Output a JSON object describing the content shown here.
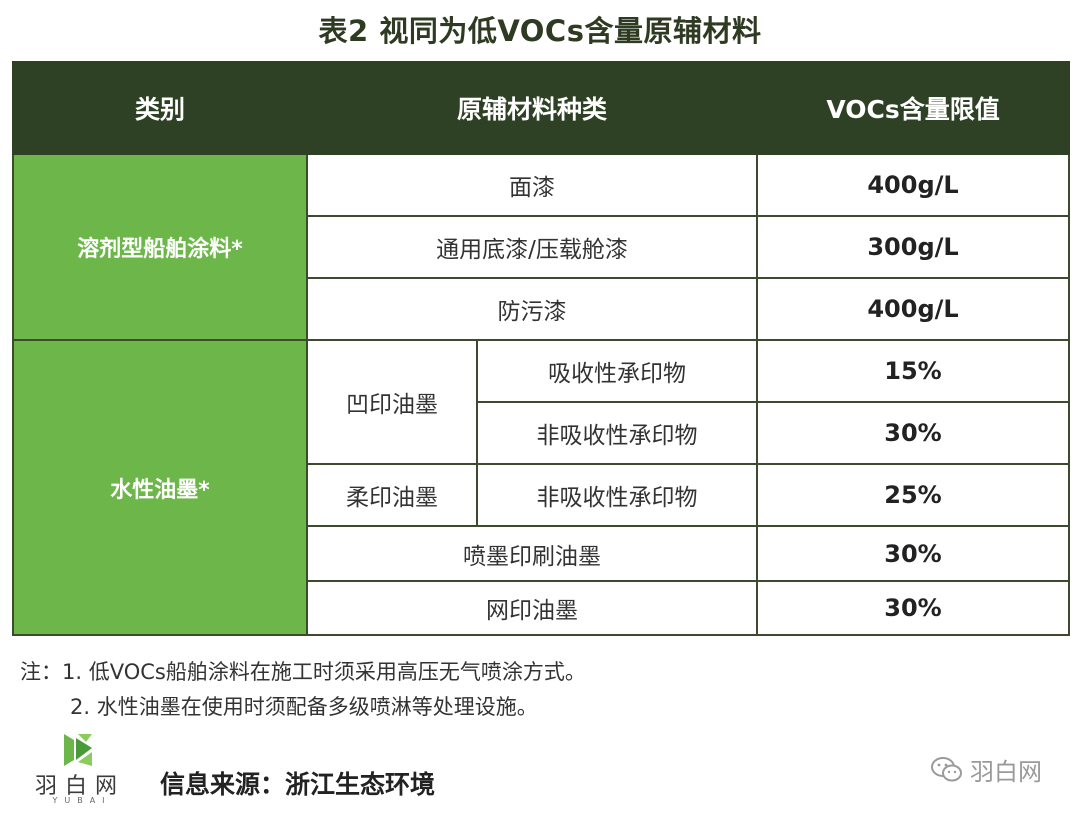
{
  "title": "表2 视同为低VOCs含量原辅材料",
  "table": {
    "headers": [
      "类别",
      "原辅材料种类",
      "VOCs含量限值"
    ],
    "solvent": {
      "category": "溶剂型船舶涂料*",
      "rows": [
        {
          "type": "面漆",
          "limit": "400g/L"
        },
        {
          "type": "通用底漆/压载舱漆",
          "limit": "300g/L"
        },
        {
          "type": "防污漆",
          "limit": "400g/L"
        }
      ]
    },
    "water": {
      "category": "水性油墨*",
      "gravure": "凹印油墨",
      "gravure_rows": [
        {
          "type": "吸收性承印物",
          "limit": "15%"
        },
        {
          "type": "非吸收性承印物",
          "limit": "30%"
        }
      ],
      "flexo": "柔印油墨",
      "flexo_row": {
        "type": "非吸收性承印物",
        "limit": "25%"
      },
      "other_rows": [
        {
          "type": "喷墨印刷油墨",
          "limit": "30%"
        },
        {
          "type": "网印油墨",
          "limit": "30%"
        }
      ]
    }
  },
  "notes": {
    "line1": "注：1. 低VOCs船舶涂料在施工时须采用高压无气喷涂方式。",
    "line2": "2. 水性油墨在使用时须配备多级喷淋等处理设施。"
  },
  "logo": {
    "text": "羽白网",
    "sub": "YUBAI",
    "icon": "yubai-logo-icon"
  },
  "source": "信息来源：浙江生态环境",
  "watermark": {
    "icon": "wechat-icon",
    "text": "羽白网"
  },
  "colors": {
    "header_bg": "#2f4124",
    "category_bg": "#6db649",
    "title": "#2f3a22"
  }
}
